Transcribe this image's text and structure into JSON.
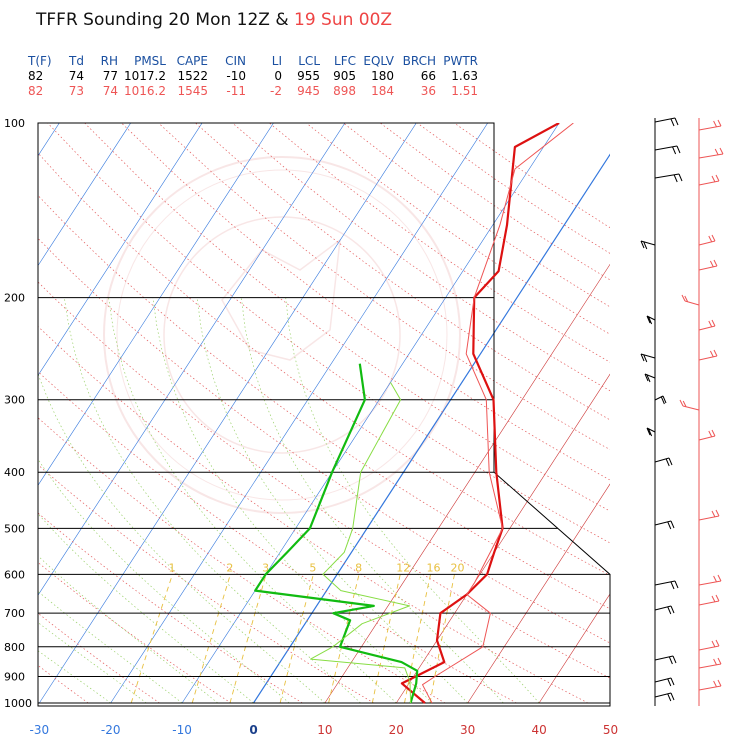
{
  "title": {
    "part1": "TFFR Sounding 20 Mon 12Z & ",
    "part2": "19 Sun 00Z"
  },
  "indices": {
    "headers": [
      "T(F)",
      "Td",
      "RH",
      "PMSL",
      "CAPE",
      "CIN",
      "LI",
      "LCL",
      "LFC",
      "EQLV",
      "BRCH",
      "PWTR"
    ],
    "row1": [
      "82",
      "74",
      "77",
      "1017.2",
      "1522",
      "-10",
      "0",
      "955",
      "905",
      "180",
      "66",
      "1.63"
    ],
    "row2": [
      "82",
      "73",
      "74",
      "1016.2",
      "1545",
      "-11",
      "-2",
      "945",
      "898",
      "184",
      "36",
      "1.51"
    ]
  },
  "colors": {
    "temp_20_12z": "#dd1111",
    "temp_19_00z": "#ee5555",
    "dew_20_12z": "#11bb11",
    "dew_19_00z": "#88dd44",
    "isotherm_blue": "#3377dd",
    "isotherm_red": "#cc3333",
    "mixing": "#e8c040"
  },
  "chart_data": {
    "type": "line",
    "title": "TFFR Sounding 20 Mon 12Z & 19 Sun 00Z",
    "x_axis": {
      "label": "",
      "ticks": [
        "-30",
        "-20",
        "-10",
        "0",
        "10",
        "20",
        "30",
        "40",
        "50"
      ],
      "range": [
        -30,
        50
      ]
    },
    "y_axis": {
      "label": "",
      "ticks": [
        "100",
        "200",
        "300",
        "400",
        "500",
        "600",
        "700",
        "800",
        "900",
        "1000"
      ],
      "scale": "log",
      "range": [
        1000,
        100
      ]
    },
    "mixing_ratio_labels": [
      "1",
      "2",
      "3",
      "5",
      "8",
      "12",
      "16",
      "20"
    ],
    "series": [
      {
        "name": "20 Mon 12Z",
        "kind": "temperature",
        "points": [
          [
            24,
            1000
          ],
          [
            19,
            925
          ],
          [
            23,
            850
          ],
          [
            20,
            780
          ],
          [
            18,
            700
          ],
          [
            20,
            650
          ],
          [
            21,
            600
          ],
          [
            20,
            550
          ],
          [
            19,
            500
          ],
          [
            13,
            400
          ],
          [
            6,
            300
          ],
          [
            -1,
            250
          ],
          [
            -6,
            200
          ],
          [
            -5,
            180
          ],
          [
            -8,
            150
          ],
          [
            -14,
            110
          ],
          [
            -10,
            100
          ]
        ]
      },
      {
        "name": "20 Mon 12Z",
        "kind": "dewpoint",
        "points": [
          [
            22,
            1000
          ],
          [
            21,
            925
          ],
          [
            20,
            880
          ],
          [
            17,
            850
          ],
          [
            7,
            800
          ],
          [
            6,
            720
          ],
          [
            3,
            700
          ],
          [
            8,
            680
          ],
          [
            -10,
            640
          ],
          [
            -10,
            600
          ],
          [
            -9,
            550
          ],
          [
            -8,
            500
          ],
          [
            -10,
            400
          ],
          [
            -12,
            300
          ],
          [
            -16,
            260
          ]
        ]
      },
      {
        "name": "19 Sun 00Z",
        "kind": "temperature",
        "points": [
          [
            25,
            1000
          ],
          [
            22,
            930
          ],
          [
            23,
            900
          ],
          [
            27,
            800
          ],
          [
            25,
            700
          ],
          [
            20,
            650
          ],
          [
            20,
            620
          ],
          [
            19,
            500
          ],
          [
            12,
            400
          ],
          [
            5,
            300
          ],
          [
            -2,
            250
          ],
          [
            -6,
            200
          ],
          [
            -9,
            150
          ],
          [
            -12,
            120
          ],
          [
            -8,
            100
          ]
        ]
      },
      {
        "name": "19 Sun 00Z",
        "kind": "dewpoint",
        "points": [
          [
            22,
            1000
          ],
          [
            20,
            920
          ],
          [
            18,
            870
          ],
          [
            4,
            840
          ],
          [
            6,
            800
          ],
          [
            8,
            730
          ],
          [
            13,
            680
          ],
          [
            2,
            640
          ],
          [
            -2,
            600
          ],
          [
            -1,
            550
          ],
          [
            -2,
            500
          ],
          [
            -6,
            400
          ],
          [
            -7,
            300
          ],
          [
            -10,
            280
          ]
        ]
      }
    ]
  }
}
